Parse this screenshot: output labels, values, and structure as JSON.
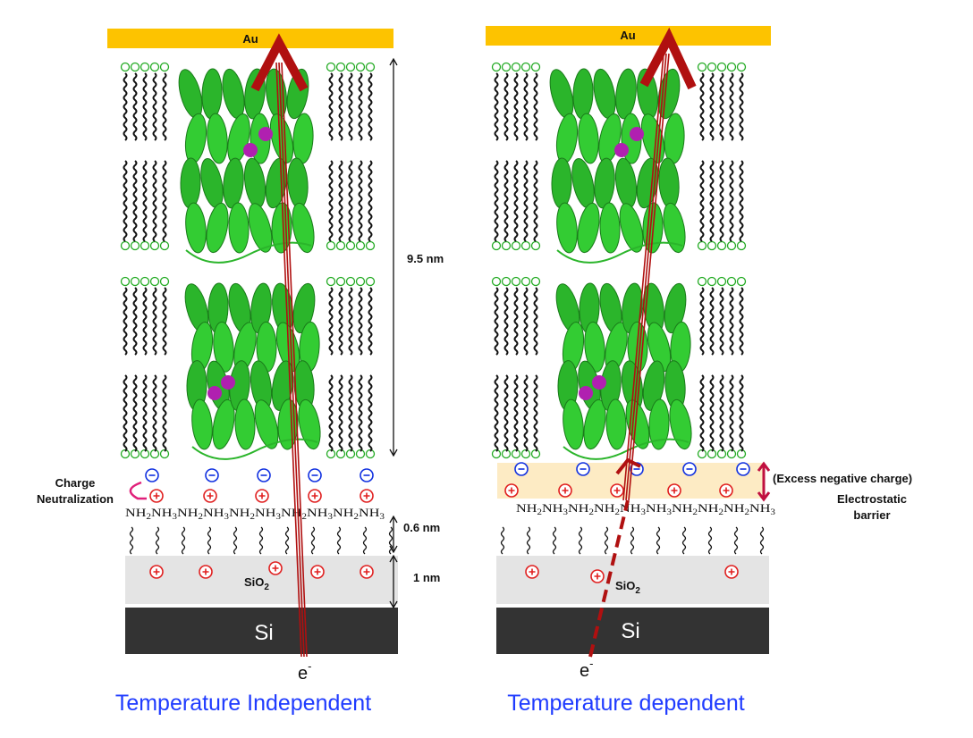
{
  "panels": [
    {
      "gold": "Au",
      "oxide": {
        "base": "SiO",
        "sub": "2"
      },
      "silicon": "Si",
      "electron": {
        "base": "e",
        "sup": "-"
      },
      "caption": "Temperature Independent",
      "amines": [
        {
          "base": "NH",
          "sub": "2"
        },
        {
          "base": "NH",
          "sub": "3"
        },
        {
          "base": "NH",
          "sub": "2"
        },
        {
          "base": "NH",
          "sub": "3"
        },
        {
          "base": "NH",
          "sub": "2"
        },
        {
          "base": "NH",
          "sub": "3"
        },
        {
          "base": "NH",
          "sub": "2"
        },
        {
          "base": "NH",
          "sub": "3"
        },
        {
          "base": "NH",
          "sub": "2"
        },
        {
          "base": "NH",
          "sub": "3"
        }
      ],
      "dimensions": [
        "9.5 nm",
        "0.6 nm",
        "1 nm"
      ],
      "side_label": [
        "Charge",
        "Neutralization"
      ]
    },
    {
      "gold": "Au",
      "oxide": {
        "base": "SiO",
        "sub": "2"
      },
      "silicon": "Si",
      "electron": {
        "base": "e",
        "sup": "-"
      },
      "caption": "Temperature dependent",
      "amines": [
        {
          "base": "NH",
          "sub": "2"
        },
        {
          "base": "NH",
          "sub": "3"
        },
        {
          "base": "NH",
          "sub": "2"
        },
        {
          "base": "NH",
          "sub": "2"
        },
        {
          "base": "NH",
          "sub": "3"
        },
        {
          "base": "NH",
          "sub": "3"
        },
        {
          "base": "NH",
          "sub": "2"
        },
        {
          "base": "NH",
          "sub": "2"
        },
        {
          "base": "NH",
          "sub": "2"
        },
        {
          "base": "NH",
          "sub": "3"
        }
      ],
      "side_label": [
        "(Excess negative charge)",
        "Electrostatic",
        "barrier"
      ]
    }
  ]
}
